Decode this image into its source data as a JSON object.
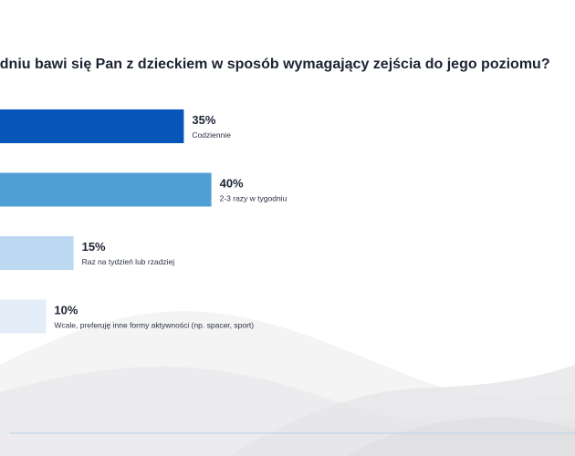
{
  "question": "odniu bawi się Pan z dzieckiem w sposób wymagający zejścia do jego poziomu?",
  "chart_data": {
    "type": "bar",
    "orientation": "horizontal",
    "categories": [
      "Codziennie",
      "2-3 razy w tygodniu",
      "Raz na tydzień lub rzadziej",
      "Wcale, preferuję inne formy aktywności (np. spacer, sport)"
    ],
    "values": [
      35,
      40,
      15,
      10
    ],
    "value_labels": [
      "35%",
      "40%",
      "15%",
      "10%"
    ],
    "unit": "%",
    "colors": [
      "#0656b9",
      "#4f9fd6",
      "#bcd9f1",
      "#e3eef9"
    ],
    "grid": false,
    "legend": "none"
  }
}
